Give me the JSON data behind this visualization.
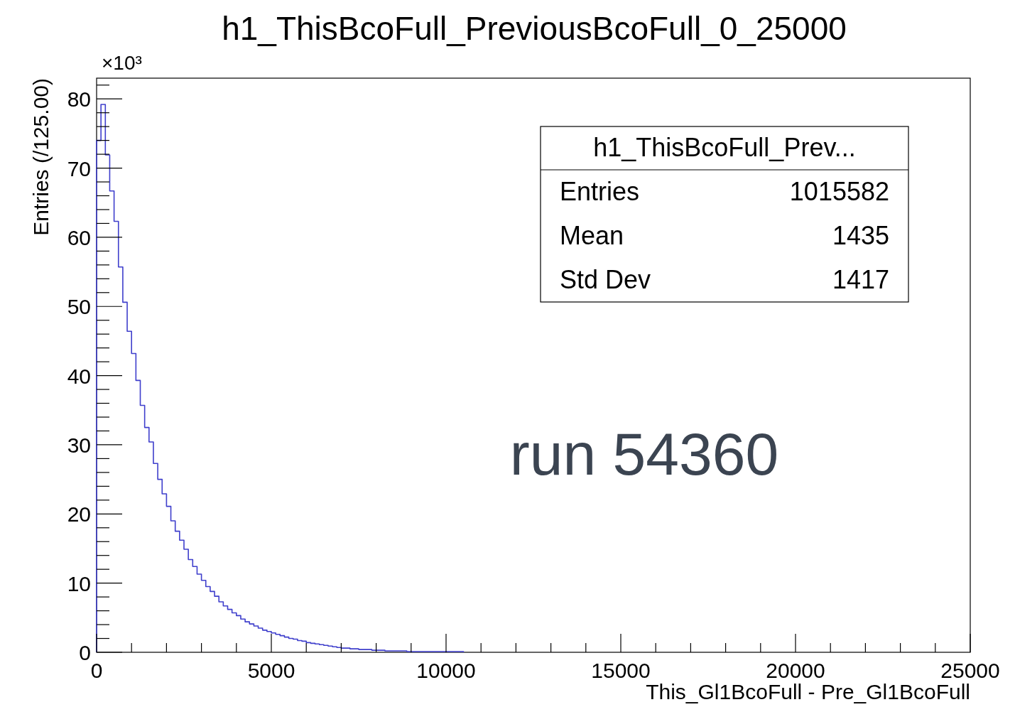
{
  "chart_data": {
    "type": "histogram",
    "title": "h1_ThisBcoFull_PreviousBcoFull_0_25000",
    "xlabel": "This_Gl1BcoFull - Pre_Gl1BcoFull",
    "ylabel": "Entries (/125.00)",
    "bins": [
      0,
      125,
      250,
      375,
      500,
      625,
      750,
      875,
      1000,
      1125,
      1250,
      1375,
      1500,
      1625,
      1750,
      1875,
      2000,
      2125,
      2250,
      2375,
      2500,
      2625,
      2750,
      2875,
      3000,
      3125,
      3250,
      3375,
      3500,
      3625,
      3750,
      3875,
      4000,
      4125,
      4250,
      4375,
      4500,
      4625,
      4750,
      4875,
      5000,
      5125,
      5250,
      5375,
      5500,
      5625,
      5750,
      5875,
      6000,
      6125,
      6250,
      6375,
      6500,
      6625,
      6750,
      6875,
      7000,
      7125,
      7250,
      7375,
      7500,
      7625,
      7750,
      7875,
      8000,
      8125,
      8250,
      8375,
      8500,
      8625,
      8750,
      8875,
      9000,
      9125,
      9250,
      9375,
      9500,
      9625,
      9750,
      9875,
      10000,
      10125,
      10250,
      10375,
      10500
    ],
    "values": [
      74,
      79.2,
      71.9,
      66.7,
      62.3,
      55.7,
      50.6,
      46.4,
      43.2,
      39.3,
      35.7,
      32.5,
      30.4,
      27.3,
      25.0,
      22.9,
      21.1,
      19.0,
      17.5,
      16.2,
      14.9,
      13.4,
      12.4,
      11.3,
      10.4,
      9.5,
      8.8,
      8.1,
      7.3,
      6.7,
      6.2,
      5.7,
      5.3,
      4.8,
      4.4,
      4.1,
      3.8,
      3.5,
      3.2,
      3.0,
      2.8,
      2.6,
      2.4,
      2.2,
      2.0,
      1.9,
      1.7,
      1.6,
      1.4,
      1.3,
      1.2,
      1.1,
      1.0,
      0.9,
      0.8,
      0.7,
      0.6,
      0.6,
      0.5,
      0.5,
      0.4,
      0.4,
      0.4,
      0.3,
      0.3,
      0.3,
      0.2,
      0.2,
      0.2,
      0.2,
      0.2,
      0.1,
      0.1,
      0.1,
      0.1,
      0.1,
      0.1,
      0.1,
      0.1,
      0.1,
      0.1,
      0.1,
      0.1,
      0.1
    ],
    "color": "#3f3fcc",
    "xlim": [
      0,
      25000
    ],
    "xticks": [
      0,
      5000,
      10000,
      15000,
      20000,
      25000
    ],
    "ylim": [
      0,
      83
    ],
    "yticks": [
      0,
      10,
      20,
      30,
      40,
      50,
      60,
      70,
      80
    ],
    "grid": false,
    "annotations": [
      "×10³",
      "h1_ThisBcoFull_Prev...",
      "Entries",
      "1015582",
      "Mean",
      "1435",
      "Std Dev",
      "1417",
      "run 54360"
    ]
  }
}
